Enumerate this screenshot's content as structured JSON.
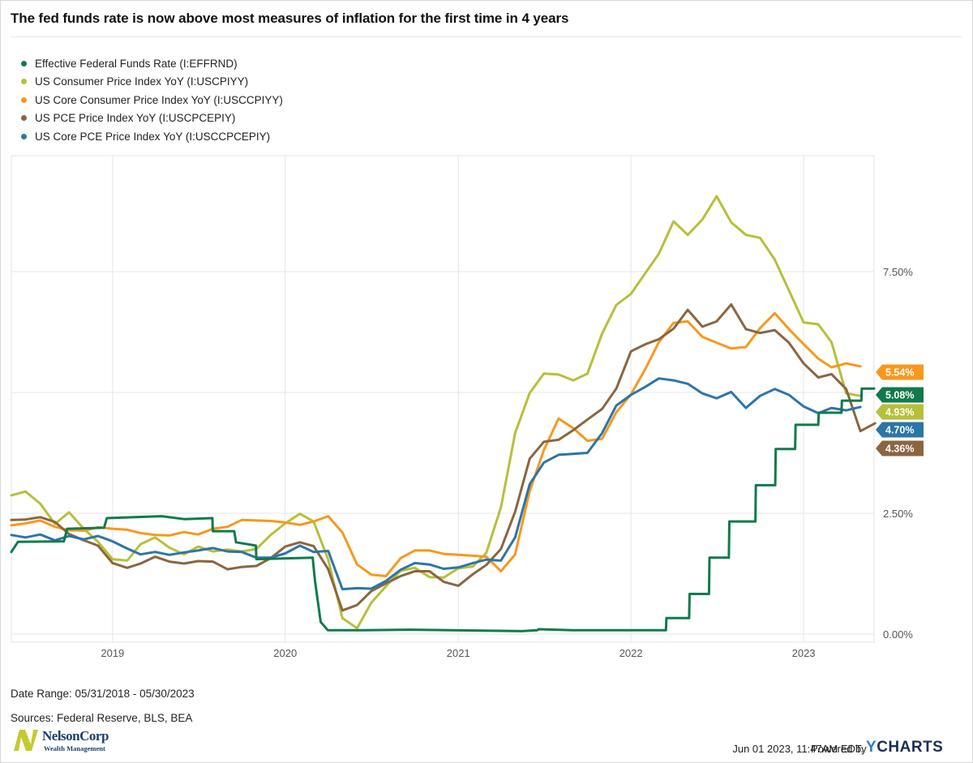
{
  "title": "The fed funds rate is now above most measures of inflation for the first time in 4 years",
  "footer": {
    "date_range": "Date Range: 05/31/2018 - 05/30/2023",
    "sources": "Sources: Federal Reserve, BLS, BEA",
    "timestamp": "Jun 01 2023, 11:47AM EDT.",
    "powered_by": "Powered by",
    "brand_y": "Y",
    "brand_rest": "CHARTS",
    "logo_name": "NelsonCorp",
    "logo_sub": "Wealth Management"
  },
  "colors": {
    "fed": "#117a4c",
    "cpi": "#b7bf3a",
    "core_cpi": "#f7981d",
    "pce": "#8b6540",
    "core_pce": "#2c75a8"
  },
  "chart_data": {
    "type": "line",
    "x_ticks": [
      "2019",
      "2020",
      "2021",
      "2022",
      "2023"
    ],
    "y_ticks": [
      "0.00%",
      "2.50%",
      "7.50%"
    ],
    "ylim": [
      0,
      10
    ],
    "grid": true,
    "legend_position": "top-left",
    "series": [
      {
        "name": "Effective Federal Funds Rate (I:EFFRND)",
        "key": "fed",
        "end_label": "5.08%",
        "points": [
          [
            "2018-06-01",
            1.7
          ],
          [
            "2018-06-15",
            1.91
          ],
          [
            "2018-09-20",
            1.92
          ],
          [
            "2018-09-27",
            2.18
          ],
          [
            "2018-12-14",
            2.2
          ],
          [
            "2018-12-20",
            2.4
          ],
          [
            "2019-04-15",
            2.44
          ],
          [
            "2019-06-01",
            2.38
          ],
          [
            "2019-07-31",
            2.4
          ],
          [
            "2019-08-01",
            2.13
          ],
          [
            "2019-09-15",
            2.13
          ],
          [
            "2019-09-19",
            1.9
          ],
          [
            "2019-10-31",
            1.83
          ],
          [
            "2019-11-01",
            1.55
          ],
          [
            "2020-02-28",
            1.58
          ],
          [
            "2020-03-04",
            1.1
          ],
          [
            "2020-03-16",
            0.25
          ],
          [
            "2020-03-31",
            0.08
          ],
          [
            "2020-06-15",
            0.08
          ],
          [
            "2020-09-15",
            0.09
          ],
          [
            "2021-05-15",
            0.06
          ],
          [
            "2021-06-17",
            0.08
          ],
          [
            "2021-06-20",
            0.1
          ],
          [
            "2021-09-01",
            0.08
          ],
          [
            "2022-03-16",
            0.08
          ],
          [
            "2022-03-17",
            0.33
          ],
          [
            "2022-05-04",
            0.33
          ],
          [
            "2022-05-05",
            0.83
          ],
          [
            "2022-06-15",
            0.83
          ],
          [
            "2022-06-16",
            1.58
          ],
          [
            "2022-07-27",
            1.58
          ],
          [
            "2022-07-28",
            2.33
          ],
          [
            "2022-09-21",
            2.33
          ],
          [
            "2022-09-22",
            3.08
          ],
          [
            "2022-11-02",
            3.08
          ],
          [
            "2022-11-03",
            3.83
          ],
          [
            "2022-12-14",
            3.83
          ],
          [
            "2022-12-15",
            4.33
          ],
          [
            "2023-02-01",
            4.33
          ],
          [
            "2023-02-02",
            4.58
          ],
          [
            "2023-03-22",
            4.58
          ],
          [
            "2023-03-23",
            4.83
          ],
          [
            "2023-05-03",
            4.83
          ],
          [
            "2023-05-04",
            5.08
          ],
          [
            "2023-05-30",
            5.08
          ]
        ]
      },
      {
        "name": "US Consumer Price Index YoY (I:USCPIYY)",
        "key": "cpi",
        "end_label": "4.93%",
        "values": [
          2.87,
          2.95,
          2.7,
          2.28,
          2.52,
          2.18,
          1.91,
          1.55,
          1.52,
          1.86,
          2.0,
          1.79,
          1.65,
          1.81,
          1.71,
          1.75,
          1.71,
          1.76,
          2.05,
          2.29,
          2.49,
          2.33,
          1.54,
          0.33,
          0.12,
          0.65,
          0.99,
          1.31,
          1.37,
          1.18,
          1.17,
          1.36,
          1.4,
          1.68,
          2.62,
          4.16,
          4.99,
          5.39,
          5.37,
          5.25,
          5.39,
          6.22,
          6.81,
          7.04,
          7.48,
          7.87,
          8.54,
          8.26,
          8.58,
          9.06,
          8.52,
          8.26,
          8.2,
          7.75,
          7.11,
          6.45,
          6.41,
          6.04,
          4.98,
          4.93
        ]
      },
      {
        "name": "US Core Consumer Price Index YoY (I:USCCPIYY)",
        "key": "core_cpi",
        "end_label": "5.54%",
        "values": [
          2.25,
          2.29,
          2.35,
          2.22,
          2.15,
          2.14,
          2.21,
          2.18,
          2.16,
          2.09,
          2.05,
          2.04,
          2.11,
          2.06,
          2.18,
          2.22,
          2.36,
          2.35,
          2.34,
          2.31,
          2.26,
          2.33,
          2.44,
          2.1,
          1.44,
          1.23,
          1.2,
          1.57,
          1.73,
          1.73,
          1.66,
          1.64,
          1.62,
          1.6,
          1.3,
          1.65,
          2.96,
          3.81,
          4.46,
          4.26,
          4.0,
          4.04,
          4.59,
          4.96,
          5.5,
          6.04,
          6.44,
          6.47,
          6.15,
          6.03,
          5.91,
          5.94,
          6.33,
          6.64,
          6.31,
          6.0,
          5.7,
          5.52,
          5.6,
          5.54
        ]
      },
      {
        "name": "US PCE Price Index YoY (I:USCPCEPIY)",
        "key": "pce",
        "end_label": "4.36%",
        "values": [
          2.36,
          2.37,
          2.42,
          2.32,
          2.07,
          1.94,
          1.83,
          1.47,
          1.37,
          1.46,
          1.6,
          1.5,
          1.46,
          1.51,
          1.5,
          1.34,
          1.39,
          1.41,
          1.57,
          1.81,
          1.9,
          1.82,
          1.34,
          0.49,
          0.6,
          0.89,
          1.05,
          1.2,
          1.3,
          1.3,
          1.08,
          1.0,
          1.24,
          1.43,
          1.76,
          2.53,
          3.63,
          3.98,
          4.02,
          4.22,
          4.44,
          4.66,
          5.08,
          5.85,
          6.0,
          6.1,
          6.32,
          6.71,
          6.36,
          6.47,
          6.82,
          6.31,
          6.23,
          6.29,
          6.03,
          5.6,
          5.31,
          5.38,
          5.07,
          4.2,
          4.36
        ]
      },
      {
        "name": "US Core PCE Price Index YoY (I:USCCPCEPIY)",
        "key": "core_pce",
        "end_label": "4.70%",
        "values": [
          2.05,
          2.0,
          2.06,
          1.94,
          2.03,
          1.96,
          2.03,
          1.92,
          1.77,
          1.65,
          1.7,
          1.64,
          1.69,
          1.73,
          1.78,
          1.71,
          1.7,
          1.58,
          1.58,
          1.67,
          1.83,
          1.7,
          1.72,
          0.93,
          0.95,
          0.94,
          1.1,
          1.33,
          1.47,
          1.44,
          1.35,
          1.38,
          1.47,
          1.54,
          1.52,
          2.0,
          3.1,
          3.55,
          3.71,
          3.73,
          3.75,
          4.16,
          4.73,
          4.95,
          5.12,
          5.29,
          5.25,
          5.18,
          4.98,
          4.88,
          5.01,
          4.68,
          4.93,
          5.07,
          4.95,
          4.71,
          4.57,
          4.68,
          4.63,
          4.7
        ]
      }
    ]
  }
}
